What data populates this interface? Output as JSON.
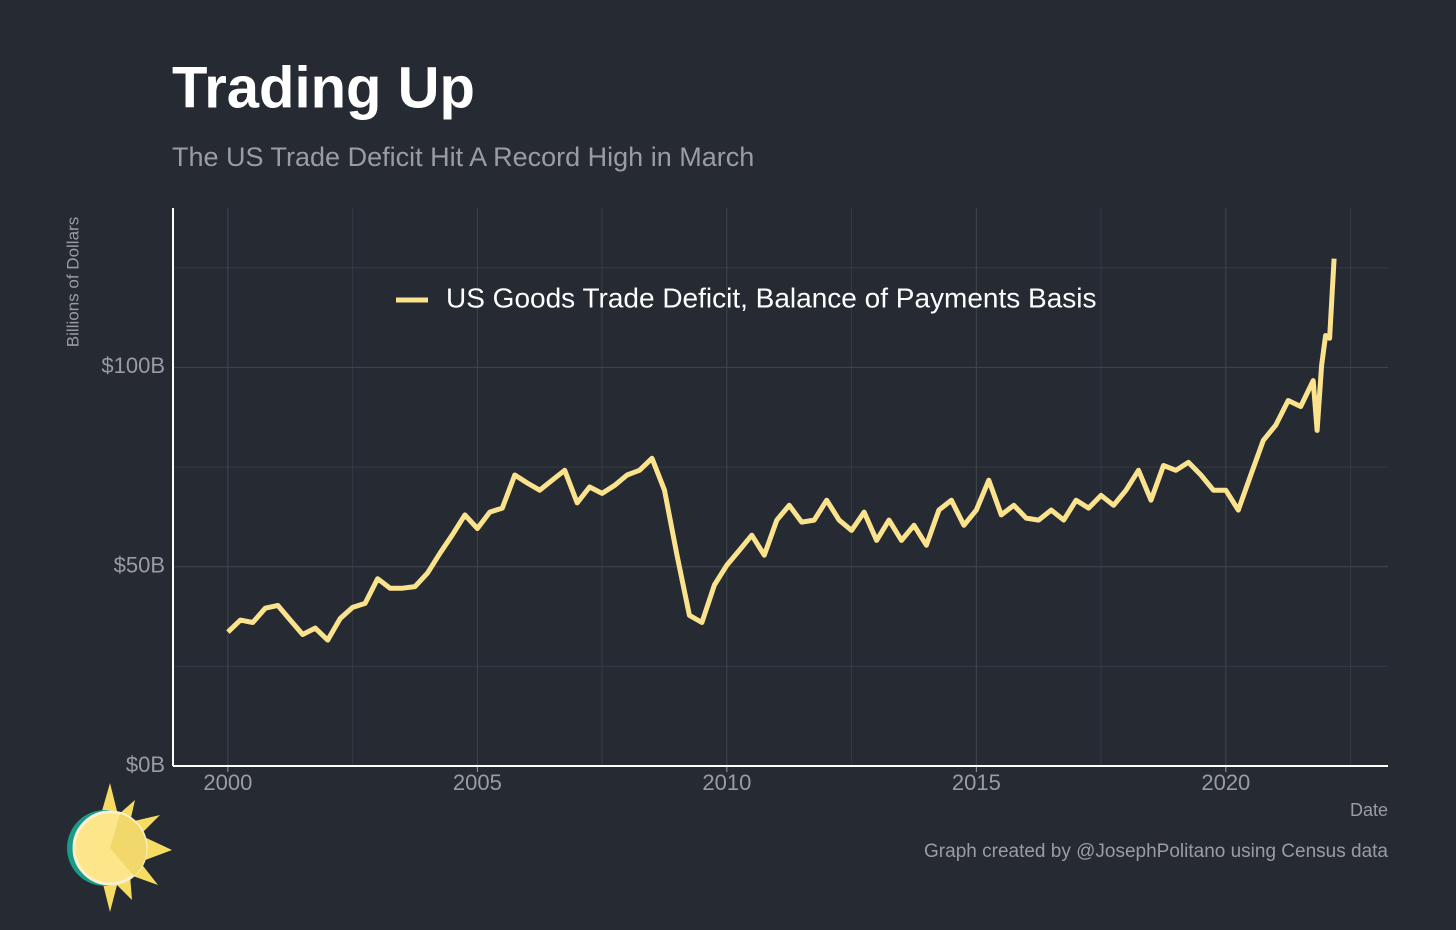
{
  "chart_data": {
    "type": "line",
    "title": "Trading Up",
    "subtitle": "The US Trade Deficit Hit A Record High in March",
    "y_label": "Billions of Dollars",
    "x_label": "Date",
    "credit": "Graph created by @JosephPolitano using Census data",
    "x": [
      2000.0,
      2000.25,
      2000.5,
      2000.75,
      2001.0,
      2001.25,
      2001.5,
      2001.75,
      2002.0,
      2002.25,
      2002.5,
      2002.75,
      2003.0,
      2003.25,
      2003.5,
      2003.75,
      2004.0,
      2004.25,
      2004.5,
      2004.75,
      2005.0,
      2005.25,
      2005.5,
      2005.75,
      2006.0,
      2006.25,
      2006.5,
      2006.75,
      2007.0,
      2007.25,
      2007.5,
      2007.75,
      2008.0,
      2008.25,
      2008.5,
      2008.75,
      2009.0,
      2009.25,
      2009.5,
      2009.75,
      2010.0,
      2010.25,
      2010.5,
      2010.75,
      2011.0,
      2011.25,
      2011.5,
      2011.75,
      2012.0,
      2012.25,
      2012.5,
      2012.75,
      2013.0,
      2013.25,
      2013.5,
      2013.75,
      2014.0,
      2014.25,
      2014.5,
      2014.75,
      2015.0,
      2015.25,
      2015.5,
      2015.75,
      2016.0,
      2016.25,
      2016.5,
      2016.75,
      2017.0,
      2017.25,
      2017.5,
      2017.75,
      2018.0,
      2018.25,
      2018.5,
      2018.75,
      2019.0,
      2019.25,
      2019.5,
      2019.75,
      2020.0,
      2020.25,
      2020.5,
      2020.75,
      2021.0,
      2021.25,
      2021.5,
      2021.75,
      2021.83,
      2021.92,
      2022.0,
      2022.08,
      2022.17
    ],
    "series": [
      {
        "name": "US Goods Trade Deficit, Balance of Payments Basis",
        "color": "#fbe38e",
        "values": [
          33.6,
          36.6,
          36,
          39.6,
          40.3,
          36.6,
          33,
          34.6,
          31.6,
          37,
          39.8,
          40.8,
          47,
          44.6,
          44.6,
          45,
          48.4,
          53.4,
          58,
          63,
          59.6,
          63.7,
          64.7,
          73,
          71,
          69.2,
          71.7,
          74.2,
          66,
          70,
          68.4,
          70.4,
          73,
          74.2,
          77.2,
          69.2,
          52.9,
          37.8,
          36,
          45.4,
          50.4,
          54.1,
          57.9,
          52.9,
          61.7,
          65.4,
          61.2,
          61.7,
          66.7,
          61.7,
          59.1,
          63.7,
          56.6,
          61.7,
          56.6,
          60.4,
          55.4,
          64.2,
          66.7,
          60.4,
          64.2,
          71.7,
          63,
          65.4,
          62.2,
          61.7,
          64.2,
          61.7,
          66.7,
          64.7,
          67.9,
          65.4,
          69.2,
          74.2,
          66.7,
          75.4,
          74.2,
          76.2,
          73,
          69.2,
          69.2,
          64.2,
          73,
          81.7,
          85.5,
          91.7,
          90.2,
          96.7,
          84.2,
          100.5,
          108,
          107.3,
          127.3
        ]
      }
    ],
    "xlim": [
      1998.9,
      2023.25
    ],
    "xticks": [
      2000,
      2005,
      2010,
      2015,
      2020
    ],
    "xminor": [
      2002.5,
      2007.5,
      2012.5,
      2017.5,
      2022.5
    ],
    "ylim": [
      0,
      140
    ],
    "yticks": [
      {
        "value": 0,
        "label": "$0B"
      },
      {
        "value": 50,
        "label": "$50B"
      },
      {
        "value": 100,
        "label": "$100B"
      }
    ],
    "yminor": [
      25,
      75,
      125
    ],
    "grid": true
  }
}
